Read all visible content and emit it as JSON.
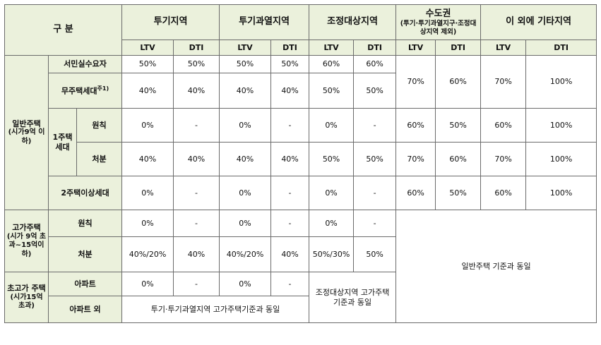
{
  "header": {
    "category": "구 분",
    "regions": [
      {
        "name": "투기지역",
        "sub": ""
      },
      {
        "name": "투기과열지역",
        "sub": ""
      },
      {
        "name": "조정대상지역",
        "sub": ""
      },
      {
        "name": "수도권",
        "sub": "(투기·투기과열지구·조정대상지역 제외)"
      },
      {
        "name": "이 외에 기타지역",
        "sub": ""
      }
    ],
    "ltv": "LTV",
    "dti": "DTI"
  },
  "groups": {
    "general": "일반주택",
    "general_sub": "(시가9억 이하)",
    "high": "고가주택",
    "high_sub": "(시가 9억 초과~15억이하)",
    "super": "초고가 주택",
    "super_sub": "(시가15억 초과)",
    "one_house": "1주택 세대"
  },
  "rows": {
    "r1": {
      "label": "서민실수요자",
      "values": [
        "50%",
        "50%",
        "50%",
        "50%",
        "60%",
        "60%"
      ]
    },
    "r2": {
      "label": "무주택세대",
      "note": "주1)",
      "values": [
        "40%",
        "40%",
        "40%",
        "40%",
        "50%",
        "50%"
      ]
    },
    "r3": {
      "label": "원칙",
      "values": [
        "0%",
        "-",
        "0%",
        "-",
        "0%",
        "-",
        "60%",
        "50%",
        "60%",
        "100%"
      ]
    },
    "r4": {
      "label": "처분",
      "values": [
        "40%",
        "40%",
        "40%",
        "40%",
        "50%",
        "50%",
        "70%",
        "60%",
        "70%",
        "100%"
      ]
    },
    "r5": {
      "label": "2주택이상세대",
      "values": [
        "0%",
        "-",
        "0%",
        "-",
        "0%",
        "-",
        "60%",
        "50%",
        "60%",
        "100%"
      ]
    },
    "r6": {
      "label": "원칙",
      "values": [
        "0%",
        "-",
        "0%",
        "-",
        "0%",
        "-"
      ]
    },
    "r7": {
      "label": "처분",
      "values": [
        "40%/20%",
        "40%",
        "40%/20%",
        "40%",
        "50%/30%",
        "50%"
      ]
    },
    "r8": {
      "label": "아파트",
      "values": [
        "0%",
        "-",
        "0%",
        "-"
      ]
    },
    "r9": {
      "label": "아파트 외",
      "merged": "투기·투기과열지역 고가주택기준과 동일"
    }
  },
  "merged": {
    "cap_ltv": "70%",
    "cap_dti": "60%",
    "etc_ltv": "70%",
    "etc_dti": "100%",
    "same_general": "일반주택 기준과 동일",
    "adj_super": "조정대상지역 고가주택 기준과 동일"
  }
}
